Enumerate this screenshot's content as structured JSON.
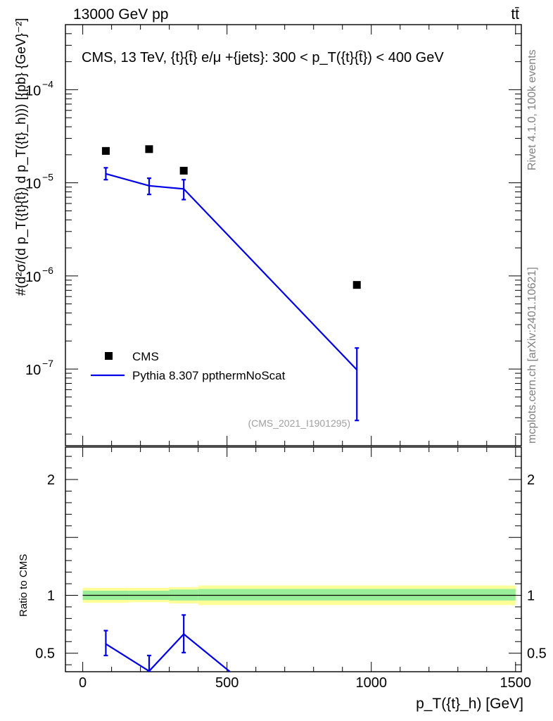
{
  "header": {
    "left": "13000 GeV pp",
    "right": "tt̄"
  },
  "side": {
    "rivet": "Rivet 4.1.0,  100k events",
    "mcplots": "mcplots.cern.ch [arXiv:2401.10621]"
  },
  "chart_data": [
    {
      "type": "scatter",
      "panel": "main",
      "title": "CMS, 13 TeV, {t}{t̄} e/μ +{jets}: 300 <  p_T({t}{t̄}) < 400 GeV",
      "ylabel": "#(d²σ/(d p_T({t}{t̄}) d p_T({t}_h))) [{pb} {GeV}⁻²]",
      "yscale": "log",
      "xlim": [
        -60,
        1520
      ],
      "ylim": [
        1.5e-08,
        0.0005
      ],
      "yticks": [
        {
          "value": 1e-07,
          "base": "10",
          "exp": "−7"
        },
        {
          "value": 1e-06,
          "base": "10",
          "exp": "−6"
        },
        {
          "value": 1e-05,
          "base": "10",
          "exp": "−5"
        },
        {
          "value": 0.0001,
          "base": "10",
          "exp": "−4"
        }
      ],
      "watermark": "(CMS_2021_I1901295)",
      "legend": [
        {
          "label": "CMS",
          "marker": "square"
        },
        {
          "label": "Pythia 8.307 ppthermNoScat",
          "marker": "line"
        }
      ],
      "series": [
        {
          "name": "CMS",
          "color": "#000000",
          "x": [
            80,
            230,
            350,
            950
          ],
          "y": [
            2.2e-05,
            2.3e-05,
            1.35e-05,
            8e-07
          ]
        },
        {
          "name": "Pythia 8.307 ppthermNoScat",
          "color": "#0000e6",
          "x": [
            80,
            230,
            350,
            950
          ],
          "y": [
            1.25e-05,
            9.3e-06,
            8.6e-06,
            9.8e-08
          ],
          "yerr_low": [
            1.08e-05,
            7.5e-06,
            6.6e-06,
            2.8e-08
          ],
          "yerr_high": [
            1.45e-05,
            1.12e-05,
            1.08e-05,
            1.68e-07
          ]
        }
      ]
    },
    {
      "type": "line",
      "panel": "ratio",
      "ylabel": "Ratio to CMS",
      "xlabel": "p_T({t}_h) [GeV]",
      "xlim": [
        -60,
        1520
      ],
      "ylim": [
        0.34,
        2.28
      ],
      "xticks": [
        {
          "value": 0,
          "label": "0"
        },
        {
          "value": 500,
          "label": "500"
        },
        {
          "value": 1000,
          "label": "1000"
        },
        {
          "value": 1500,
          "label": "1500"
        }
      ],
      "yticks": [
        {
          "value": 0.5,
          "label": "0.5"
        },
        {
          "value": 1,
          "label": "1"
        },
        {
          "value": 2,
          "label": "2"
        }
      ],
      "bands": [
        {
          "x0": 0,
          "x1": 160,
          "inner": [
            0.96,
            1.04
          ],
          "outer": [
            0.935,
            1.065
          ]
        },
        {
          "x0": 160,
          "x1": 300,
          "inner": [
            0.96,
            1.04
          ],
          "outer": [
            0.94,
            1.065
          ]
        },
        {
          "x0": 300,
          "x1": 400,
          "inner": [
            0.955,
            1.05
          ],
          "outer": [
            0.93,
            1.07
          ]
        },
        {
          "x0": 400,
          "x1": 1500,
          "inner": [
            0.955,
            1.055
          ],
          "outer": [
            0.915,
            1.085
          ]
        }
      ],
      "series": [
        {
          "name": "Pythia 8.307 ppthermNoScat / CMS",
          "color": "#0000e6",
          "x": [
            80,
            230,
            350,
            510
          ],
          "y": [
            0.58,
            0.345,
            0.665,
            0.34
          ],
          "yerr_low": [
            0.48,
            0.34,
            0.505,
            null
          ],
          "yerr_high": [
            0.695,
            0.48,
            0.83,
            null
          ]
        }
      ]
    }
  ]
}
